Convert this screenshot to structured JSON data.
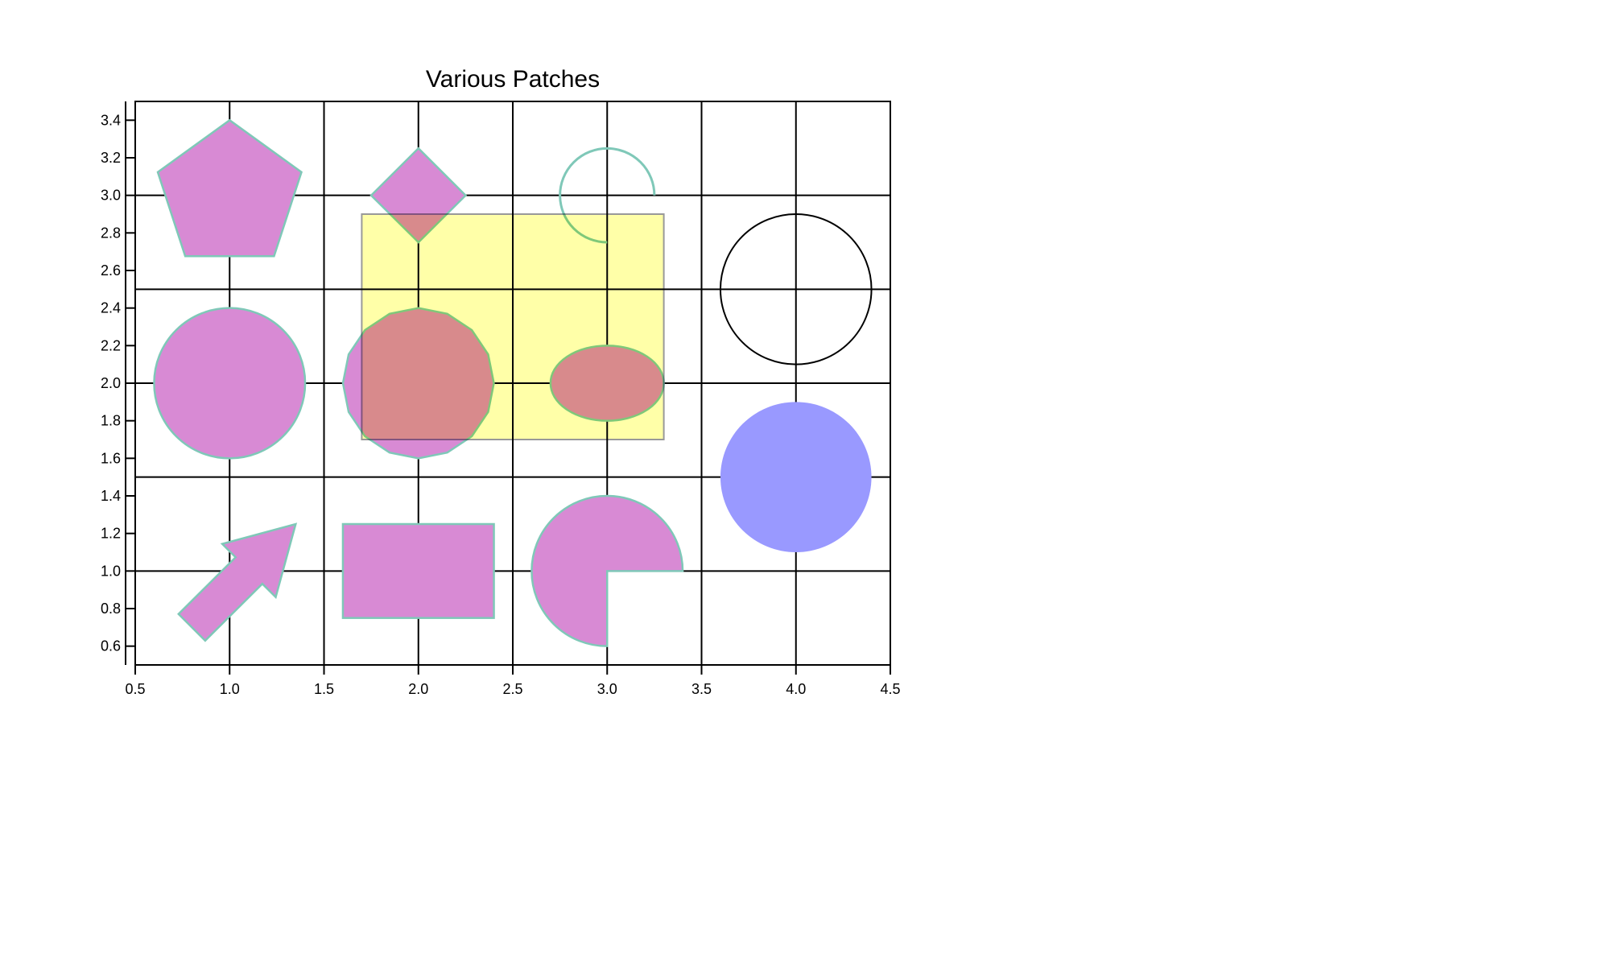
{
  "chart_data": {
    "type": "patches",
    "title": "Various Patches",
    "xlabel": "",
    "ylabel": "",
    "xlim": [
      0.5,
      4.5
    ],
    "ylim": [
      0.5,
      3.5
    ],
    "xticks": [
      "0.5",
      "1.0",
      "1.5",
      "2.0",
      "2.5",
      "3.0",
      "3.5",
      "4.0",
      "4.5"
    ],
    "yticks": [
      "0.6",
      "0.8",
      "1.0",
      "1.2",
      "1.4",
      "1.6",
      "1.8",
      "2.0",
      "2.2",
      "2.4",
      "2.6",
      "2.8",
      "3.0",
      "3.2",
      "3.4"
    ],
    "grid": true,
    "gridlines_x": [
      1.0,
      1.5,
      2.0,
      2.5,
      3.0,
      3.5,
      4.0
    ],
    "gridlines_y": [
      1.0,
      1.5,
      2.0,
      2.5,
      3.0
    ],
    "colors": {
      "patch_fill": "#d88ad4",
      "patch_edge": "#7fc8b8",
      "yellow_fill": "#ffff99",
      "yellow_edge": "#999999",
      "blue_fill": "#9999ff",
      "black_edge": "#000000"
    },
    "patches": [
      {
        "shape": "pentagon",
        "center": [
          1.0,
          3.0
        ],
        "radius": 0.4
      },
      {
        "shape": "diamond",
        "center": [
          2.0,
          3.0
        ],
        "radius": 0.25
      },
      {
        "shape": "arc",
        "center": [
          3.0,
          3.0
        ],
        "radius": 0.25,
        "theta_from": 0,
        "theta_to": 270
      },
      {
        "shape": "circle",
        "center": [
          1.0,
          2.0
        ],
        "radius": 0.4
      },
      {
        "shape": "polygon",
        "center": [
          2.0,
          2.0
        ],
        "radius": 0.4,
        "sides": 16
      },
      {
        "shape": "ellipse",
        "center": [
          3.0,
          2.0
        ],
        "width": 0.6,
        "height": 0.4
      },
      {
        "shape": "arrow",
        "tail": [
          0.8,
          0.7
        ],
        "head": [
          1.35,
          1.25
        ]
      },
      {
        "shape": "rectangle",
        "x": 1.6,
        "y": 0.75,
        "width": 0.8,
        "height": 0.5
      },
      {
        "shape": "wedge",
        "center": [
          3.0,
          1.0
        ],
        "radius": 0.4,
        "theta_from": 0,
        "theta_to": 270
      },
      {
        "shape": "circle-outline",
        "center": [
          4.0,
          2.5
        ],
        "radius": 0.4
      },
      {
        "shape": "circle-filled",
        "center": [
          4.0,
          1.5
        ],
        "radius": 0.4
      },
      {
        "shape": "yellow-rectangle",
        "x": 1.7,
        "y": 1.7,
        "width": 1.6,
        "height": 1.2
      }
    ]
  }
}
